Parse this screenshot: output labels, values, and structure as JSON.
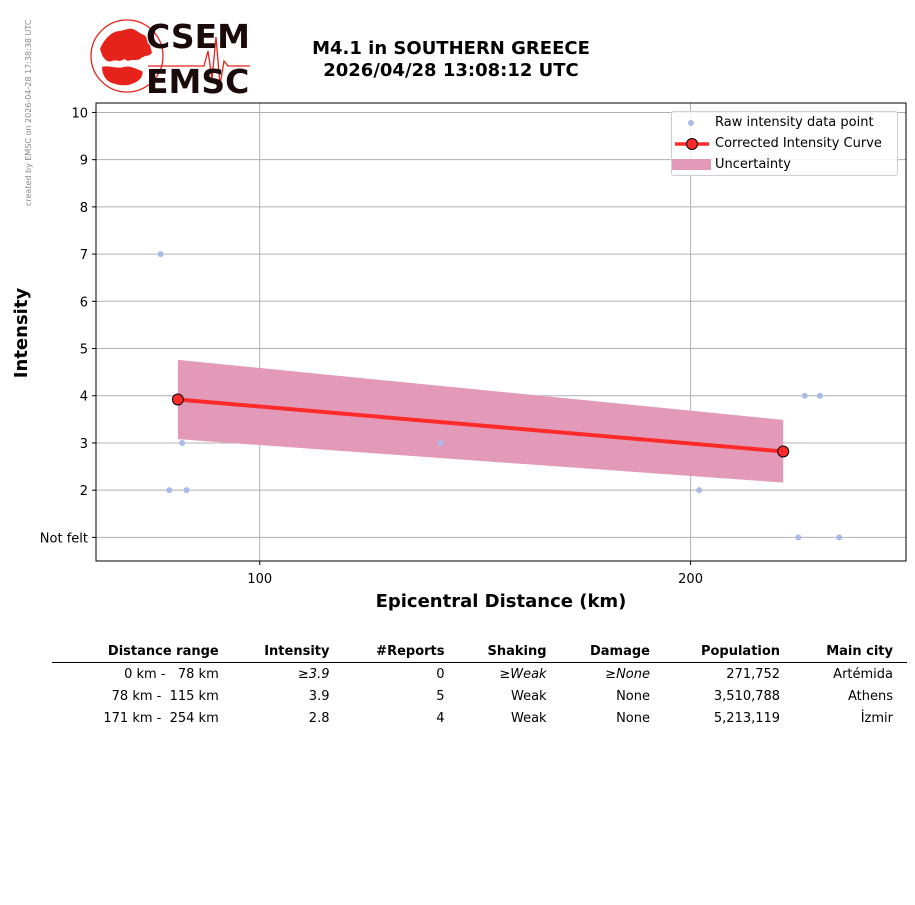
{
  "watermark": "created by EMSC on 2026-04-28 17:38:38 UTC",
  "logo": {
    "top_text": "CSEM",
    "bottom_text": "EMSC"
  },
  "title": {
    "line1": "M4.1 in SOUTHERN GREECE",
    "line2": "2026/04/28 13:08:12 UTC"
  },
  "colors": {
    "raw_points": "#aabbe8",
    "curve": "#ff2a2a",
    "uncertainty": "#e39ab8",
    "logo_red": "#e5231b",
    "logo_text": "#1a0a0a"
  },
  "chart_data": {
    "type": "line",
    "xlabel": "Epicentral Distance (km)",
    "ylabel": "Intensity",
    "xlim": [
      62,
      250
    ],
    "ylim": [
      0.5,
      10.2
    ],
    "x_ticks": [
      100,
      200
    ],
    "y_ticks": [
      {
        "value": 1,
        "label": "Not felt"
      },
      {
        "value": 2,
        "label": "2"
      },
      {
        "value": 3,
        "label": "3"
      },
      {
        "value": 4,
        "label": "4"
      },
      {
        "value": 5,
        "label": "5"
      },
      {
        "value": 6,
        "label": "6"
      },
      {
        "value": 7,
        "label": "7"
      },
      {
        "value": 8,
        "label": "8"
      },
      {
        "value": 9,
        "label": "9"
      },
      {
        "value": 10,
        "label": "10"
      }
    ],
    "grid": true,
    "legend_position": "top-right",
    "legend": [
      "Raw intensity data point",
      "Corrected Intensity Curve",
      "Uncertainty"
    ],
    "raw_points": [
      {
        "x": 77,
        "y": 7
      },
      {
        "x": 79,
        "y": 2
      },
      {
        "x": 82,
        "y": 3
      },
      {
        "x": 83,
        "y": 2
      },
      {
        "x": 142,
        "y": 3
      },
      {
        "x": 202,
        "y": 2
      },
      {
        "x": 225,
        "y": 1
      },
      {
        "x": 226.5,
        "y": 4
      },
      {
        "x": 230,
        "y": 4
      },
      {
        "x": 234.5,
        "y": 1
      }
    ],
    "curve": [
      {
        "x": 81,
        "y": 3.92
      },
      {
        "x": 221.5,
        "y": 2.82
      }
    ],
    "uncertainty": {
      "x": [
        81,
        221.5
      ],
      "upper": [
        4.76,
        3.49
      ],
      "lower": [
        3.08,
        2.16
      ]
    }
  },
  "table": {
    "headers": [
      "Distance range",
      "Intensity",
      "#Reports",
      "Shaking",
      "Damage",
      "Population",
      "Main city"
    ],
    "rows": [
      [
        "0 km -   78 km",
        "≥3.9",
        "0",
        "≥Weak",
        "≥None",
        "271,752",
        "Artémida"
      ],
      [
        "78 km -  115 km",
        "3.9",
        "5",
        "Weak",
        "None",
        "3,510,788",
        "Athens"
      ],
      [
        "171 km -  254 km",
        "2.8",
        "4",
        "Weak",
        "None",
        "5,213,119",
        "İzmir"
      ]
    ],
    "italic_cells": [
      [
        0,
        1
      ],
      [
        0,
        3
      ],
      [
        0,
        4
      ]
    ]
  }
}
